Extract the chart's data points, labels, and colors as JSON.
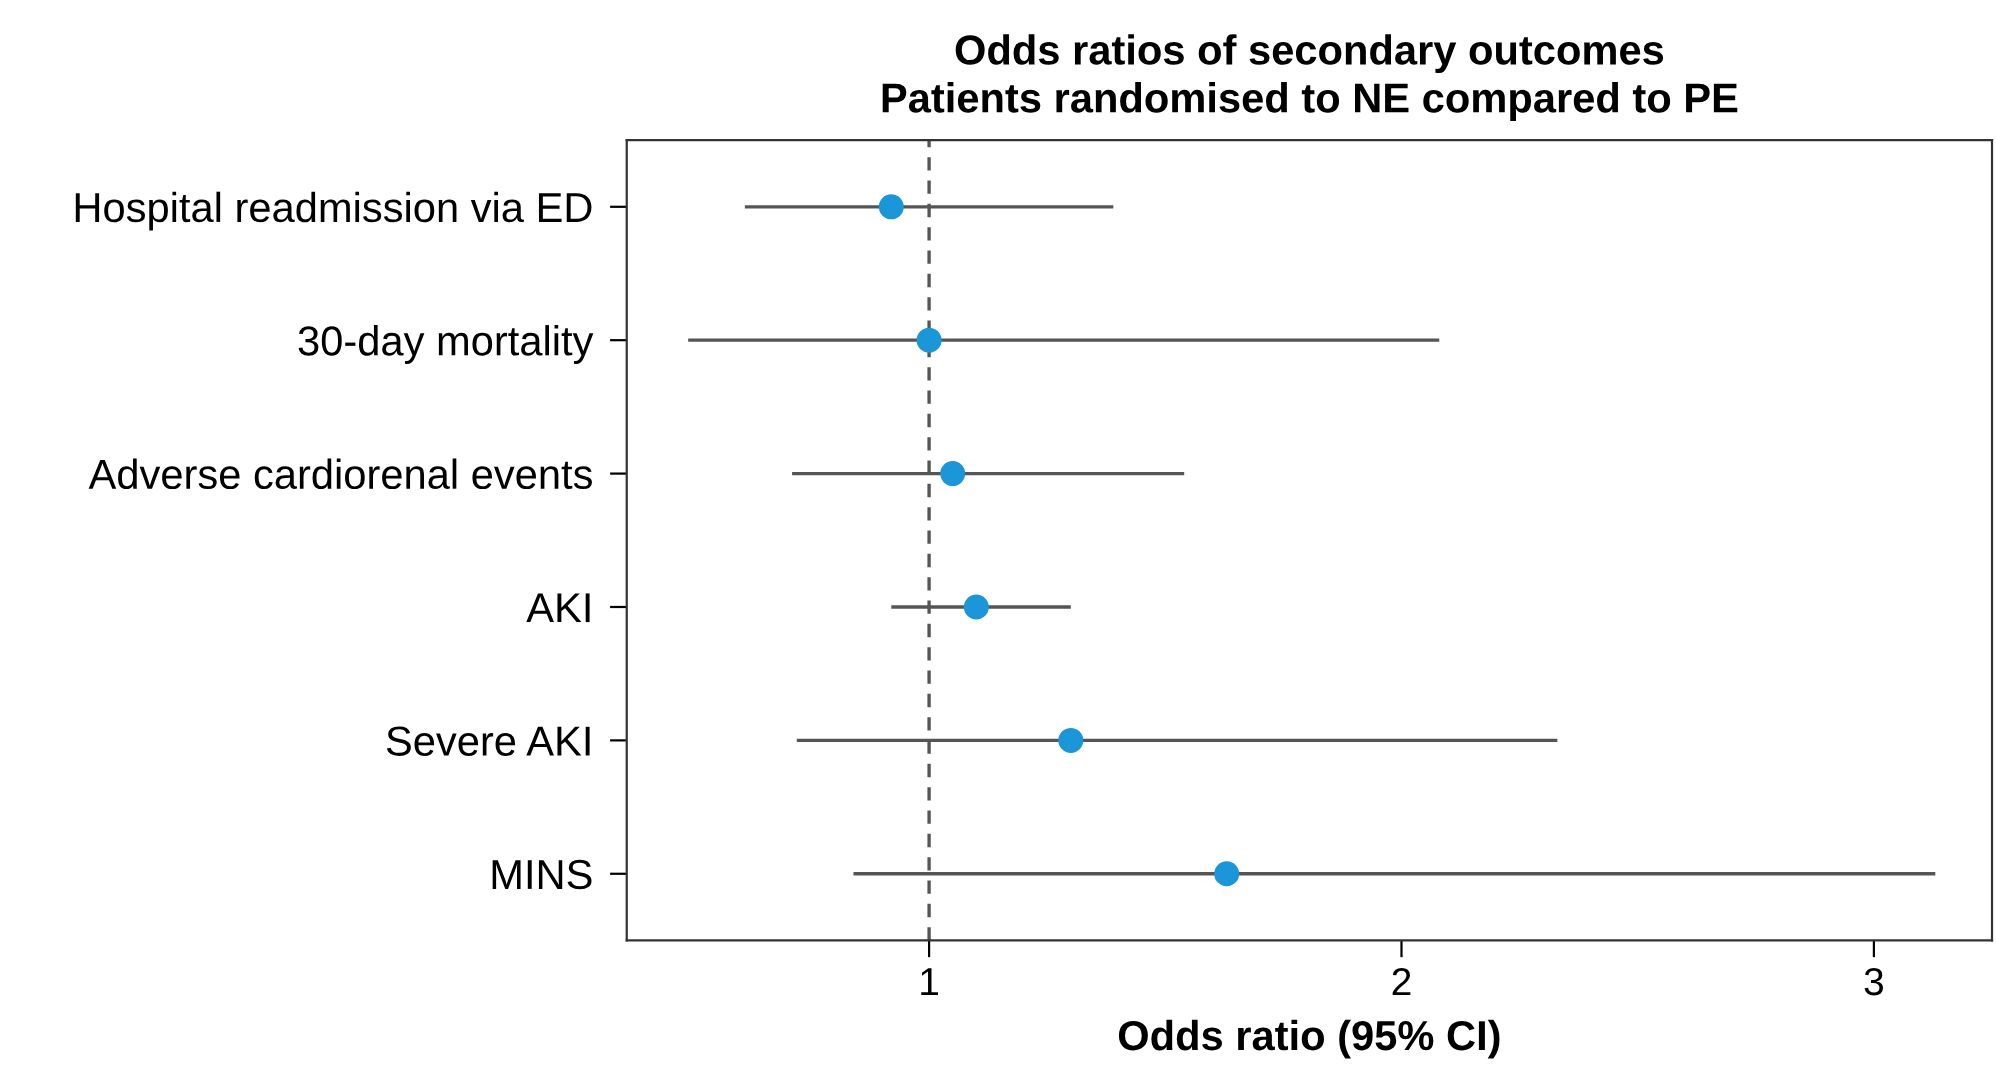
{
  "chart_data": {
    "type": "scatter",
    "orientation": "horizontal",
    "title": "Odds ratios of secondary outcomes\nPatients randomised to NE compared to PE",
    "xlabel": "Odds ratio (95% CI)",
    "categories": [
      "Hospital readmission via ED",
      "30-day mortality",
      "Adverse cardiorenal events",
      "AKI",
      "Severe AKI",
      "MINS"
    ],
    "values": [
      0.92,
      1.0,
      1.05,
      1.1,
      1.3,
      1.63
    ],
    "errors": [
      [
        0.61,
        1.39
      ],
      [
        0.49,
        2.08
      ],
      [
        0.71,
        1.54
      ],
      [
        0.92,
        1.3
      ],
      [
        0.72,
        2.33
      ],
      [
        0.84,
        3.13
      ]
    ],
    "color": "#1b96d8",
    "marker": "circle",
    "xlim": [
      0.36,
      3.25
    ],
    "xticks": [
      1,
      2,
      3
    ],
    "ref_lines": [
      {
        "axis": "x",
        "value": 1,
        "line_style": "dashed",
        "color": "#555555"
      }
    ],
    "grid": false,
    "legend": false
  }
}
